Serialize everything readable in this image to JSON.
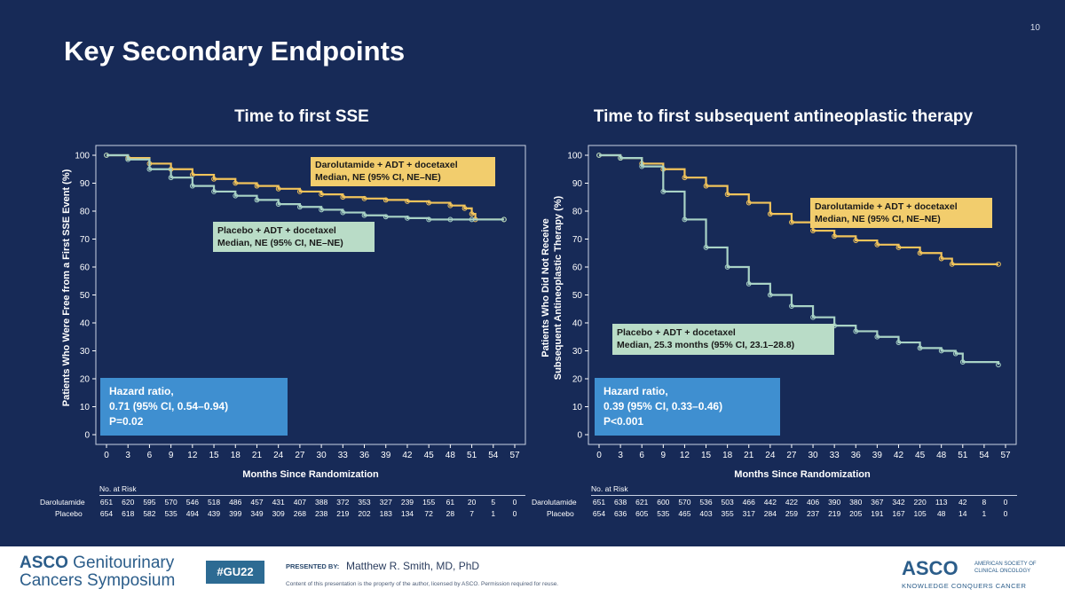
{
  "slide": {
    "title": "Key Secondary Endpoints",
    "page_number": "10"
  },
  "footer": {
    "left_logo_line1_bold": "ASCO",
    "left_logo_line1_rest": " Genitourinary",
    "left_logo_line2": "Cancers Symposium",
    "hashtag": "#GU22",
    "presented_by_label": "PRESENTED BY:",
    "presenter": "Matthew R. Smith, MD, PhD",
    "disclaimer": "Content of this presentation is the property of the author, licensed by ASCO. Permission required for reuse.",
    "right_logo": "ASCO",
    "right_logo_society": "AMERICAN SOCIETY OF CLINICAL ONCOLOGY",
    "right_logo_tagline": "KNOWLEDGE CONQUERS CANCER"
  },
  "colors": {
    "background": "#172a57",
    "darolutamide": "#f2c45b",
    "placebo": "#a9d3c6",
    "hazard_box": "#3f8fd0",
    "darolutamide_label_box": "#f2cd6d",
    "placebo_label_box": "#b9dcc7"
  },
  "chart_data": [
    {
      "type": "line",
      "title": "Time to first SSE",
      "xlabel": "Months Since Randomization",
      "ylabel": "Patients Who Were Free from a First SSE Event (%)",
      "xlim": [
        0,
        57
      ],
      "ylim": [
        0,
        100
      ],
      "x_ticks": [
        0,
        3,
        6,
        9,
        12,
        15,
        18,
        21,
        24,
        27,
        30,
        33,
        36,
        39,
        42,
        45,
        48,
        51,
        54,
        57
      ],
      "y_ticks": [
        0,
        10,
        20,
        30,
        40,
        50,
        60,
        70,
        80,
        90,
        100
      ],
      "series": [
        {
          "name": "Darolutamide + ADT + docetaxel",
          "median_label": "Median, NE (95% CI, NE–NE)",
          "points": [
            [
              0,
              100
            ],
            [
              3,
              99
            ],
            [
              6,
              97
            ],
            [
              9,
              95
            ],
            [
              12,
              93
            ],
            [
              15,
              91.5
            ],
            [
              18,
              90
            ],
            [
              21,
              89
            ],
            [
              24,
              88
            ],
            [
              27,
              87
            ],
            [
              30,
              86
            ],
            [
              33,
              85
            ],
            [
              36,
              84.5
            ],
            [
              39,
              84
            ],
            [
              42,
              83.5
            ],
            [
              45,
              83
            ],
            [
              48,
              82
            ],
            [
              50,
              81
            ],
            [
              51,
              79
            ],
            [
              51.5,
              77
            ],
            [
              55.5,
              77
            ]
          ]
        },
        {
          "name": "Placebo + ADT + docetaxel",
          "median_label": "Median, NE (95% CI, NE–NE)",
          "points": [
            [
              0,
              100
            ],
            [
              3,
              98.5
            ],
            [
              6,
              95
            ],
            [
              9,
              92
            ],
            [
              12,
              89
            ],
            [
              15,
              87
            ],
            [
              18,
              85.5
            ],
            [
              21,
              84
            ],
            [
              24,
              82.5
            ],
            [
              27,
              81.5
            ],
            [
              30,
              80.5
            ],
            [
              33,
              79.5
            ],
            [
              36,
              78.5
            ],
            [
              39,
              78
            ],
            [
              42,
              77.5
            ],
            [
              45,
              77
            ],
            [
              48,
              77
            ],
            [
              51,
              77
            ],
            [
              55.5,
              77
            ]
          ]
        }
      ],
      "hazard_ratio": {
        "line1": "Hazard ratio,",
        "line2": "0.71 (95% CI, 0.54–0.94)",
        "line3": "P=0.02"
      },
      "at_risk": {
        "header": "No. at Risk",
        "rows": [
          {
            "label": "Darolutamide",
            "values": [
              "651",
              "620",
              "595",
              "570",
              "546",
              "518",
              "486",
              "457",
              "431",
              "407",
              "388",
              "372",
              "353",
              "327",
              "239",
              "155",
              "61",
              "20",
              "5",
              "0"
            ]
          },
          {
            "label": "Placebo",
            "values": [
              "654",
              "618",
              "582",
              "535",
              "494",
              "439",
              "399",
              "349",
              "309",
              "268",
              "238",
              "219",
              "202",
              "183",
              "134",
              "72",
              "28",
              "7",
              "1",
              "0"
            ]
          }
        ]
      }
    },
    {
      "type": "line",
      "title": "Time to first subsequent antineoplastic therapy",
      "xlabel": "Months Since Randomization",
      "ylabel_line1": "Patients Who Did Not Receive",
      "ylabel_line2": "Subsequent Antineoplastic Therapy (%)",
      "xlim": [
        0,
        57
      ],
      "ylim": [
        0,
        100
      ],
      "x_ticks": [
        0,
        3,
        6,
        9,
        12,
        15,
        18,
        21,
        24,
        27,
        30,
        33,
        36,
        39,
        42,
        45,
        48,
        51,
        54,
        57
      ],
      "y_ticks": [
        0,
        10,
        20,
        30,
        40,
        50,
        60,
        70,
        80,
        90,
        100
      ],
      "series": [
        {
          "name": "Darolutamide + ADT + docetaxel",
          "median_label": "Median, NE (95% CI, NE–NE)",
          "points": [
            [
              0,
              100
            ],
            [
              3,
              99
            ],
            [
              6,
              97
            ],
            [
              9,
              95
            ],
            [
              12,
              92
            ],
            [
              15,
              89
            ],
            [
              18,
              86
            ],
            [
              21,
              83
            ],
            [
              24,
              79
            ],
            [
              27,
              76
            ],
            [
              30,
              73
            ],
            [
              33,
              71
            ],
            [
              36,
              69.5
            ],
            [
              39,
              68
            ],
            [
              42,
              67
            ],
            [
              45,
              65
            ],
            [
              48,
              63
            ],
            [
              49.5,
              61
            ],
            [
              56,
              61
            ]
          ]
        },
        {
          "name": "Placebo + ADT + docetaxel",
          "median_label": "Median, 25.3 months (95% CI, 23.1–28.8)",
          "points": [
            [
              0,
              100
            ],
            [
              3,
              99
            ],
            [
              6,
              96
            ],
            [
              9,
              87
            ],
            [
              12,
              77
            ],
            [
              15,
              67
            ],
            [
              18,
              60
            ],
            [
              21,
              54
            ],
            [
              24,
              50
            ],
            [
              27,
              46
            ],
            [
              30,
              42
            ],
            [
              33,
              39
            ],
            [
              36,
              37
            ],
            [
              39,
              35
            ],
            [
              42,
              33
            ],
            [
              45,
              31
            ],
            [
              48,
              30
            ],
            [
              50,
              29
            ],
            [
              51,
              26
            ],
            [
              56,
              25
            ]
          ]
        }
      ],
      "hazard_ratio": {
        "line1": "Hazard ratio,",
        "line2": "0.39 (95% CI, 0.33–0.46)",
        "line3": "P<0.001"
      },
      "at_risk": {
        "header": "No. at Risk",
        "rows": [
          {
            "label": "Darolutamide",
            "values": [
              "651",
              "638",
              "621",
              "600",
              "570",
              "536",
              "503",
              "466",
              "442",
              "422",
              "406",
              "390",
              "380",
              "367",
              "342",
              "220",
              "113",
              "42",
              "8",
              "0"
            ]
          },
          {
            "label": "Placebo",
            "values": [
              "654",
              "636",
              "605",
              "535",
              "465",
              "403",
              "355",
              "317",
              "284",
              "259",
              "237",
              "219",
              "205",
              "191",
              "167",
              "105",
              "48",
              "14",
              "1",
              "0"
            ]
          }
        ]
      }
    }
  ]
}
